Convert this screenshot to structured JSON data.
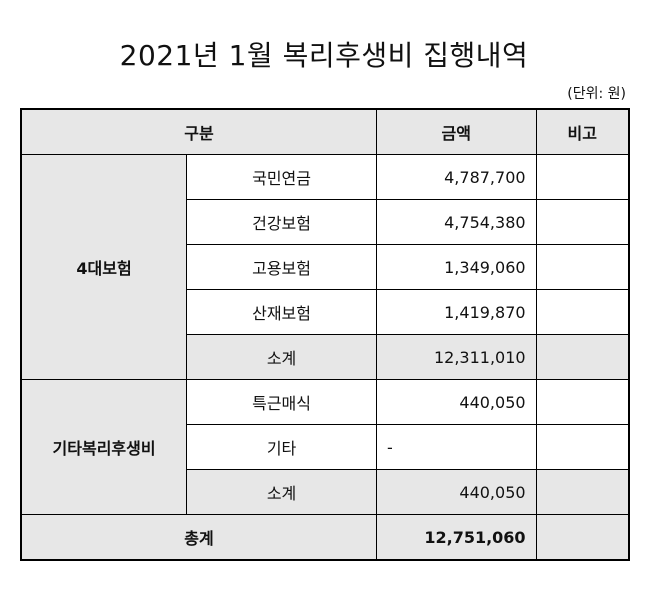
{
  "title": "2021년 1월 복리후생비 집행내역",
  "unit_note": "(단위: 원)",
  "headers": {
    "category": "구분",
    "amount": "금액",
    "note": "비고"
  },
  "groups": [
    {
      "name": "4대보험",
      "rows": [
        {
          "item": "국민연금",
          "amount": "4,787,700",
          "note": ""
        },
        {
          "item": "건강보험",
          "amount": "4,754,380",
          "note": ""
        },
        {
          "item": "고용보험",
          "amount": "1,349,060",
          "note": ""
        },
        {
          "item": "산재보험",
          "amount": "1,419,870",
          "note": ""
        }
      ],
      "subtotal": {
        "label": "소계",
        "amount": "12,311,010",
        "note": ""
      }
    },
    {
      "name": "기타복리후생비",
      "rows": [
        {
          "item": "특근매식",
          "amount": "440,050",
          "note": ""
        },
        {
          "item": "기타",
          "amount": "-",
          "note": ""
        }
      ],
      "subtotal": {
        "label": "소계",
        "amount": "440,050",
        "note": ""
      }
    }
  ],
  "total": {
    "label": "총계",
    "amount": "12,751,060",
    "note": ""
  }
}
